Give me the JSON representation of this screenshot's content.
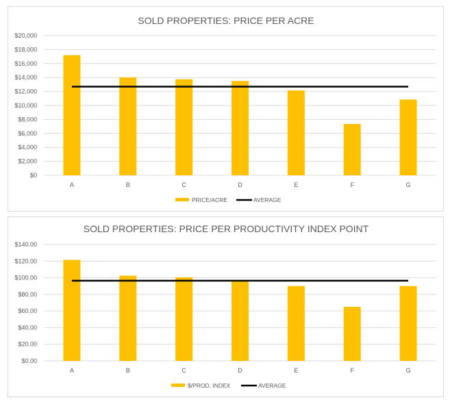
{
  "chart_data": [
    {
      "type": "bar",
      "title": "SOLD PROPERTIES: PRICE PER ACRE",
      "categories": [
        "A",
        "B",
        "C",
        "D",
        "E",
        "F",
        "G"
      ],
      "series": [
        {
          "name": "PRICE/ACRE",
          "type": "bar",
          "color": "#ffc000",
          "values": [
            17200,
            14000,
            13750,
            13500,
            12150,
            7350,
            10850
          ]
        },
        {
          "name": "AVERAGE",
          "type": "line",
          "color": "#000000",
          "values": [
            12700,
            12700,
            12700,
            12700,
            12700,
            12700,
            12700
          ]
        }
      ],
      "ylim": [
        0,
        20000
      ],
      "yticks": [
        "$0",
        "$2,000",
        "$4,000",
        "$6,000",
        "$8,000",
        "$10,000",
        "$12,000",
        "$14,000",
        "$16,000",
        "$18,000",
        "$20,000"
      ],
      "grid": true,
      "legend": "bottom"
    },
    {
      "type": "bar",
      "title": "SOLD PROPERTIES: PRICE PER PRODUCTIVITY INDEX  POINT",
      "categories": [
        "A",
        "B",
        "C",
        "D",
        "E",
        "F",
        "G"
      ],
      "series": [
        {
          "name": "$/PROD. INDEX",
          "type": "bar",
          "color": "#ffc000",
          "values": [
            121.5,
            102.5,
            100.5,
            96.5,
            90,
            65,
            90
          ]
        },
        {
          "name": "AVERAGE",
          "type": "line",
          "color": "#000000",
          "values": [
            96.5,
            96.5,
            96.5,
            96.5,
            96.5,
            96.5,
            96.5
          ]
        }
      ],
      "ylim": [
        0,
        140
      ],
      "yticks": [
        "$0.00",
        "$20.00",
        "$40.00",
        "$60.00",
        "$80.00",
        "$100.00",
        "$120.00",
        "$140.00"
      ],
      "grid": true,
      "legend": "bottom"
    }
  ]
}
